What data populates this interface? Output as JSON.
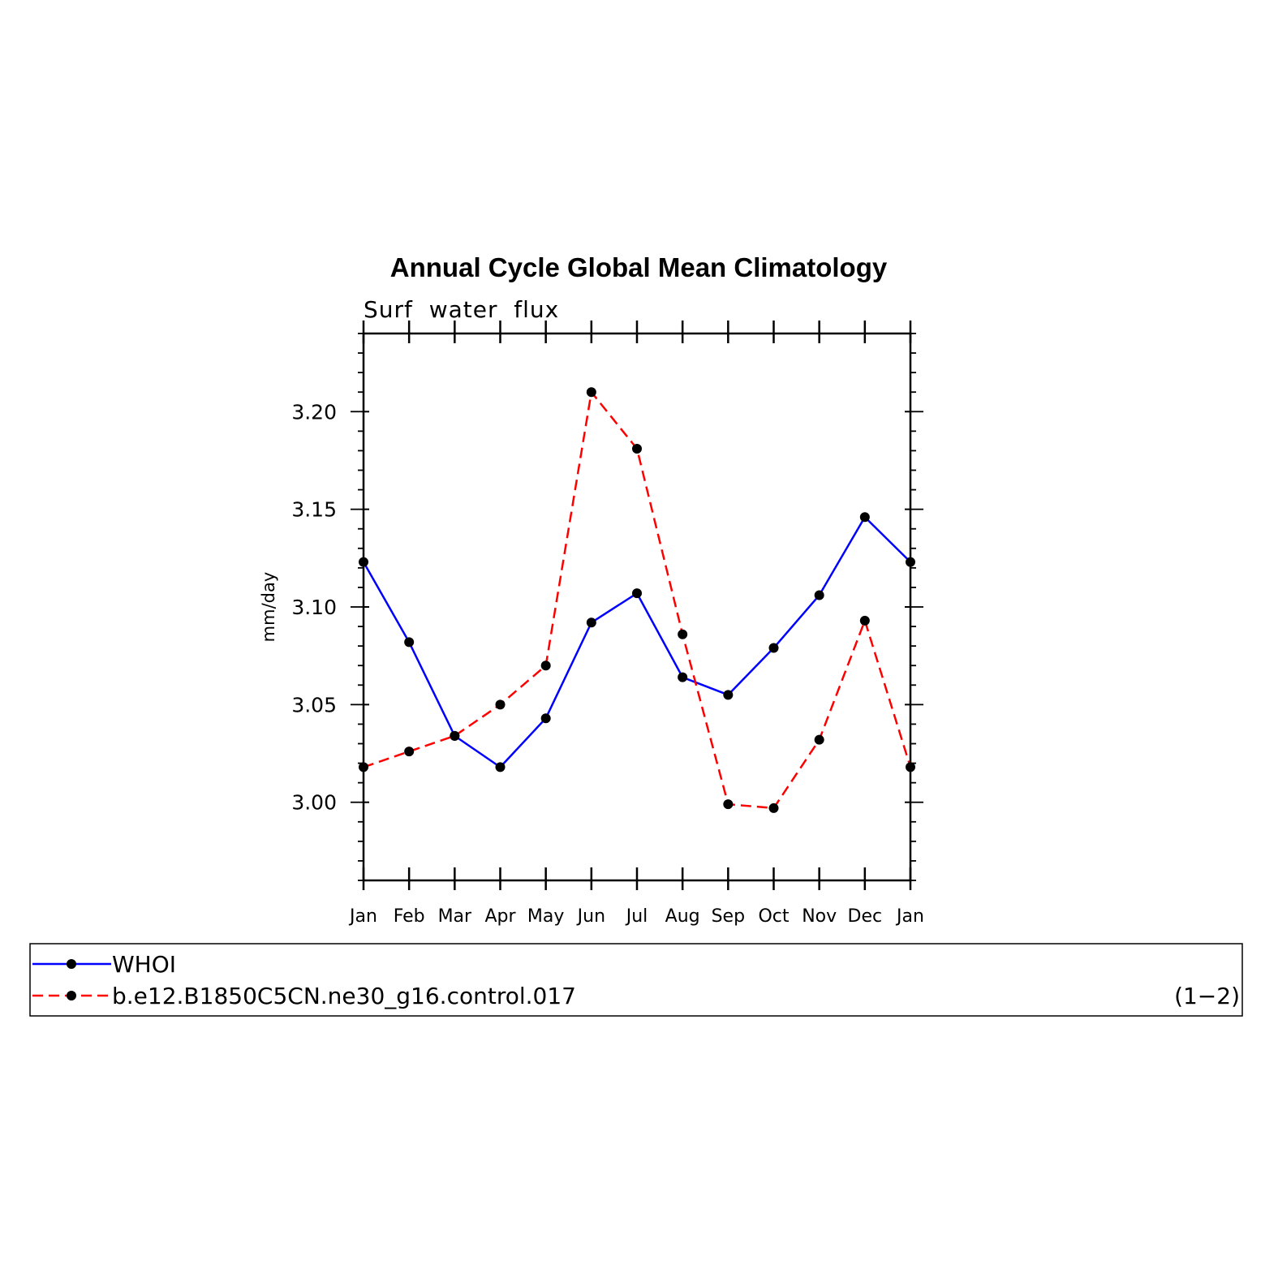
{
  "chart_data": {
    "type": "line",
    "title": "Annual Cycle Global Mean Climatology",
    "subtitle": "Surf  water  flux",
    "xlabel": "",
    "ylabel": "mm/day",
    "categories": [
      "Jan",
      "Feb",
      "Mar",
      "Apr",
      "May",
      "Jun",
      "Jul",
      "Aug",
      "Sep",
      "Oct",
      "Nov",
      "Dec",
      "Jan"
    ],
    "ylim": [
      2.96,
      3.24
    ],
    "yticks": [
      3.0,
      3.05,
      3.1,
      3.15,
      3.2
    ],
    "ytick_labels": [
      "3.00",
      "3.05",
      "3.10",
      "3.15",
      "3.20"
    ],
    "grid": false,
    "legend_position": "bottom",
    "panel_label": "(1−2)",
    "series": [
      {
        "name": "WHOI",
        "color": "#0000ff",
        "dash": "solid",
        "marker_color": "#000000",
        "values": [
          3.123,
          3.082,
          3.034,
          3.018,
          3.043,
          3.092,
          3.107,
          3.064,
          3.055,
          3.079,
          3.106,
          3.146,
          3.123
        ]
      },
      {
        "name": "b.e12.B1850C5CN.ne30_g16.control.017",
        "color": "#ff0000",
        "dash": "dashed",
        "marker_color": "#000000",
        "values": [
          3.018,
          3.026,
          3.034,
          3.05,
          3.07,
          3.21,
          3.181,
          3.086,
          2.999,
          2.997,
          3.032,
          3.093,
          3.018
        ]
      }
    ]
  }
}
